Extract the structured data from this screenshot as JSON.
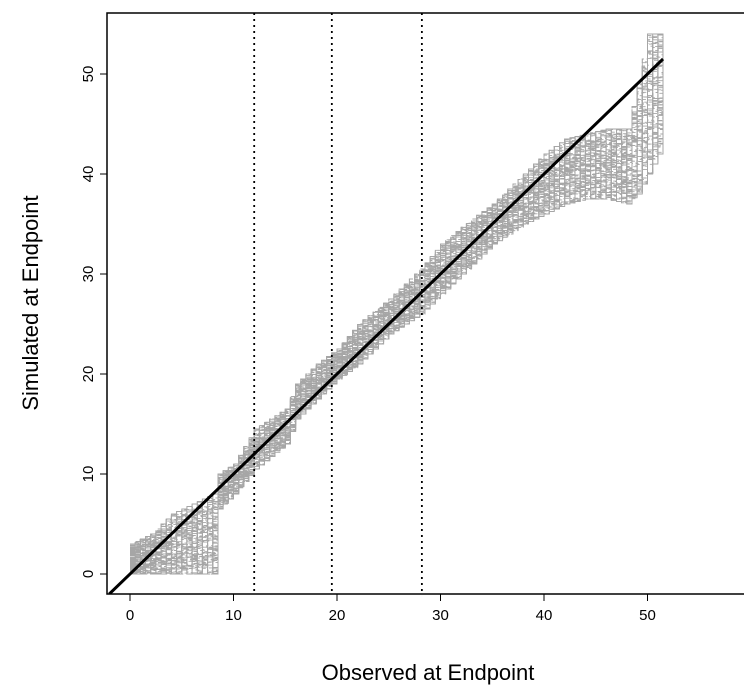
{
  "chart_data": {
    "type": "line",
    "xlabel": "Observed at Endpoint",
    "ylabel": "Simulated at Endpoint",
    "xlim": [
      -2,
      51.5
    ],
    "ylim": [
      -2,
      55.5
    ],
    "x_ticks": [
      0,
      10,
      20,
      30,
      40,
      50
    ],
    "y_ticks": [
      0,
      10,
      20,
      30,
      40,
      50
    ],
    "grid": false,
    "legend": "none",
    "reference_line": {
      "slope": 1,
      "intercept": 0,
      "color": "#000000"
    },
    "vertical_reference_lines": [
      12,
      19.5,
      28.2
    ],
    "simulated_band": {
      "color": "#a6a6a6",
      "n_simulations": 100,
      "x": [
        0,
        2,
        4,
        5,
        6,
        8,
        8.5,
        10,
        12,
        15,
        16,
        18,
        20,
        22,
        25,
        28,
        30,
        33,
        35,
        38,
        40,
        42,
        44,
        46,
        48,
        49,
        50,
        51.5
      ],
      "lower": [
        0,
        0,
        0,
        0,
        0,
        0,
        6.5,
        8,
        10.5,
        13,
        15.5,
        17.5,
        19.5,
        21,
        24,
        26,
        28,
        31,
        33,
        35,
        36,
        37,
        37.5,
        37.5,
        37,
        38,
        40,
        43
      ],
      "upper": [
        3,
        4,
        6,
        6.5,
        7,
        8,
        10,
        11,
        14.5,
        16.5,
        19,
        21,
        22.5,
        25,
        27.5,
        30.5,
        33,
        35.5,
        37,
        40,
        42,
        43.5,
        44,
        44.5,
        44.5,
        49,
        54,
        54
      ]
    }
  }
}
